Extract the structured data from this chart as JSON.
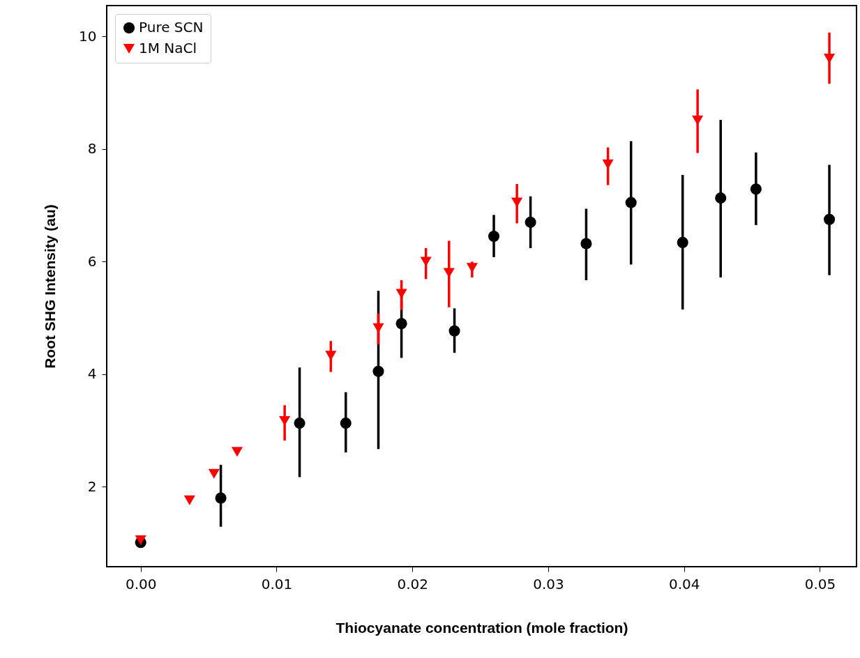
{
  "chart_data": {
    "type": "scatter",
    "xlabel": "Thiocyanate concentration (mole fraction)",
    "ylabel": "Root SHG Intensity (au)",
    "xlim": [
      -0.0025,
      0.0527
    ],
    "ylim": [
      0.58,
      10.55
    ],
    "xticks": [
      {
        "value": 0,
        "label": "0.00"
      },
      {
        "value": 0.01,
        "label": "0.01"
      },
      {
        "value": 0.02,
        "label": "0.02"
      },
      {
        "value": 0.03,
        "label": "0.03"
      },
      {
        "value": 0.04,
        "label": "0.04"
      },
      {
        "value": 0.05,
        "label": "0.05"
      }
    ],
    "yticks": [
      2,
      4,
      6,
      8,
      10
    ],
    "grid": false,
    "legend": "top left",
    "series": [
      {
        "name": "Pure SCN",
        "color": "#000000",
        "marker": "circle",
        "x": [
          0.0,
          0.0059,
          0.0117,
          0.0151,
          0.0175,
          0.0192,
          0.0231,
          0.026,
          0.0287,
          0.0328,
          0.0361,
          0.0399,
          0.0427,
          0.0453,
          0.0507
        ],
        "values": [
          1.01,
          1.8,
          3.13,
          3.13,
          4.05,
          4.9,
          4.77,
          6.45,
          6.7,
          6.32,
          7.05,
          6.34,
          7.13,
          7.29,
          6.75
        ],
        "errors": [
          null,
          [
            1.29,
            2.39
          ],
          [
            2.17,
            4.12
          ],
          [
            2.61,
            3.68
          ],
          [
            2.67,
            5.48
          ],
          [
            4.29,
            5.51
          ],
          [
            4.38,
            5.17
          ],
          [
            6.08,
            6.83
          ],
          [
            6.24,
            7.16
          ],
          [
            5.67,
            6.94
          ],
          [
            5.95,
            8.14
          ],
          [
            5.15,
            7.54
          ],
          [
            5.72,
            8.52
          ],
          [
            6.65,
            7.94
          ],
          [
            5.76,
            7.72
          ]
        ]
      },
      {
        "name": "1M NaCl",
        "color": "#ff0000",
        "marker": "triangle",
        "x": [
          0.0,
          0.0036,
          0.0054,
          0.0071,
          0.0106,
          0.014,
          0.0175,
          0.0192,
          0.021,
          0.0227,
          0.0244,
          0.0277,
          0.0344,
          0.041,
          0.0507
        ],
        "values": [
          1.05,
          1.76,
          2.23,
          2.62,
          3.17,
          4.33,
          4.82,
          5.43,
          6.0,
          5.8,
          5.89,
          7.05,
          7.73,
          8.51,
          9.61
        ],
        "errors": [
          null,
          null,
          null,
          null,
          [
            2.82,
            3.45
          ],
          [
            4.04,
            4.59
          ],
          [
            4.53,
            5.08
          ],
          [
            5.14,
            5.67
          ],
          [
            5.69,
            6.24
          ],
          [
            5.19,
            6.37
          ],
          [
            5.72,
            6.0
          ],
          [
            6.68,
            7.38
          ],
          [
            7.36,
            8.03
          ],
          [
            7.93,
            9.06
          ],
          [
            9.16,
            10.07
          ]
        ]
      }
    ]
  }
}
